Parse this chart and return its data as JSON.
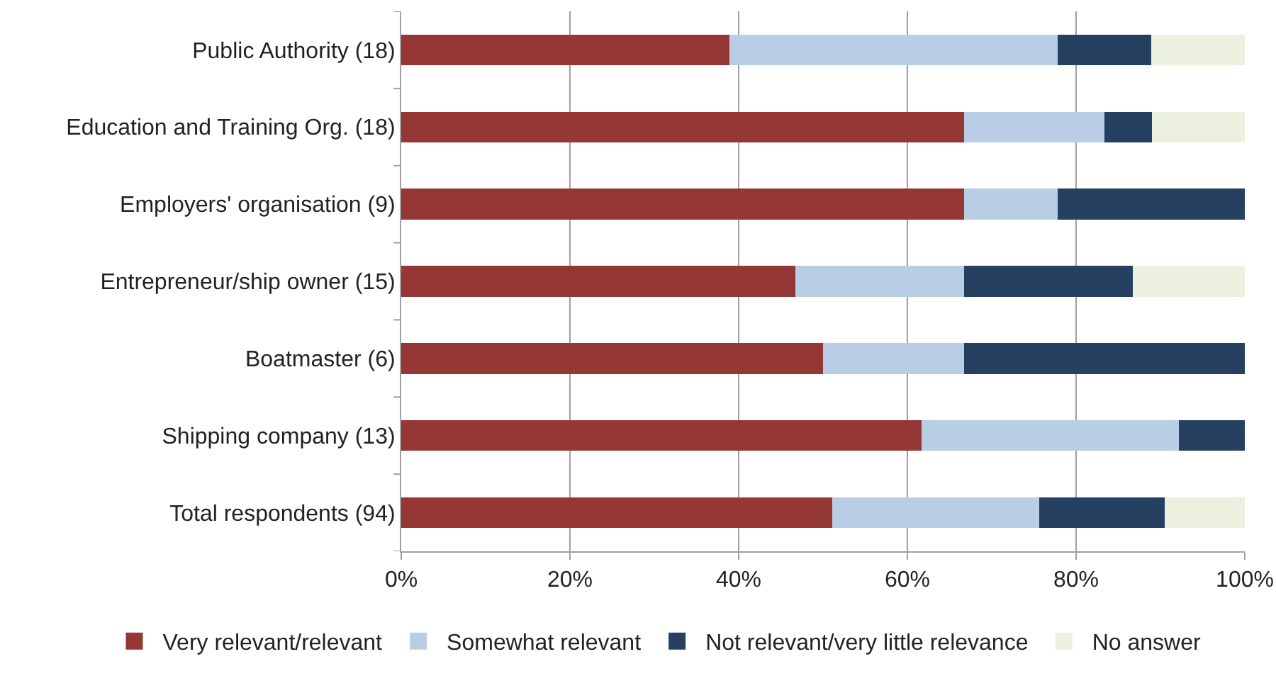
{
  "chart_data": {
    "type": "bar",
    "orientation": "horizontal",
    "stacked": true,
    "categories": [
      "Public Authority (18)",
      "Education and Training Org. (18)",
      "Employers' organisation (9)",
      "Entrepreneur/ship owner (15)",
      "Boatmaster (6)",
      "Shipping company (13)",
      "Total respondents (94)"
    ],
    "series": [
      {
        "name": "Very relevant/relevant",
        "color": "#953735",
        "values": [
          38.9,
          66.7,
          66.7,
          46.7,
          50.0,
          61.7,
          51.1
        ]
      },
      {
        "name": "Somewhat relevant",
        "color": "#b9cde5",
        "values": [
          38.9,
          16.7,
          11.1,
          20.0,
          16.7,
          30.5,
          24.5
        ]
      },
      {
        "name": "Not relevant/very little relevance",
        "color": "#254061",
        "values": [
          11.1,
          5.6,
          22.2,
          20.0,
          33.3,
          7.8,
          14.9
        ]
      },
      {
        "name": "No answer",
        "color": "#ebf1de",
        "values": [
          11.1,
          11.0,
          0,
          13.3,
          0,
          0,
          9.5
        ]
      }
    ],
    "xlim": [
      0,
      100
    ],
    "xticks": [
      {
        "value": 0,
        "label": "0%"
      },
      {
        "value": 20,
        "label": "20%"
      },
      {
        "value": 40,
        "label": "40%"
      },
      {
        "value": 60,
        "label": "60%"
      },
      {
        "value": 80,
        "label": "80%"
      },
      {
        "value": 100,
        "label": "100%"
      }
    ],
    "grid": "x",
    "legend": "bottom"
  }
}
